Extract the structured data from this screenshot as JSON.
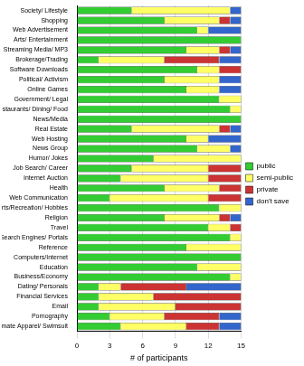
{
  "chart_data": {
    "type": "bar",
    "orientation": "horizontal",
    "stacked": true,
    "grid": true,
    "legend": "right",
    "xlabel": "# of participants",
    "xlim": [
      0,
      15
    ],
    "xticks": [
      0,
      3,
      6,
      9,
      12,
      15
    ],
    "categories": [
      "Society/ Lifestyle",
      "Shopping",
      "Web Advertisement",
      "Arts/ Entertainment",
      "Streaming Media/ MP3",
      "Brokerage/Trading",
      "Software Downloads",
      "Political/ Activism",
      "Online Games",
      "Government/ Legal",
      "Restaurants/ Dining/ Food",
      "News/Media",
      "Real Estate",
      "Web Hosting",
      "News Group",
      "Humor/ Jokes",
      "Job Search/ Career",
      "Internet Auction",
      "Health",
      "Web Communication",
      "Sports/Recreation/ Hobbies",
      "Religion",
      "Travel",
      "Search Engines/ Portals",
      "Reference",
      "Computers/Internet",
      "Education",
      "Business/Economy",
      "Dating/ Personals",
      "Financial Services",
      "Email",
      "Pornography",
      "Intimate Apparel/ Swimsuit"
    ],
    "series": [
      {
        "name": "public",
        "color": "#33cc33",
        "values": [
          5,
          8,
          11,
          15,
          10,
          2,
          11,
          8,
          10,
          13,
          14,
          15,
          5,
          10,
          11,
          7,
          5,
          4,
          8,
          3,
          13,
          8,
          12,
          14,
          10,
          15,
          11,
          14,
          2,
          2,
          2,
          3,
          4
        ]
      },
      {
        "name": "semi-public",
        "color": "#ffff66",
        "values": [
          9,
          5,
          1,
          0,
          3,
          6,
          2,
          5,
          3,
          2,
          1,
          0,
          8,
          2,
          3,
          8,
          7,
          8,
          5,
          9,
          2,
          5,
          2,
          1,
          5,
          0,
          4,
          1,
          2,
          5,
          7,
          5,
          6
        ]
      },
      {
        "name": "private",
        "color": "#cc3333",
        "values": [
          0,
          1,
          0,
          0,
          1,
          5,
          2,
          0,
          0,
          0,
          0,
          0,
          1,
          0,
          0,
          0,
          3,
          3,
          2,
          3,
          0,
          1,
          1,
          0,
          0,
          0,
          0,
          0,
          6,
          8,
          6,
          5,
          3
        ]
      },
      {
        "name": "don't save",
        "color": "#3366cc",
        "values": [
          1,
          1,
          3,
          0,
          1,
          2,
          0,
          2,
          2,
          0,
          0,
          0,
          1,
          3,
          1,
          0,
          0,
          0,
          0,
          0,
          0,
          1,
          0,
          0,
          0,
          0,
          0,
          0,
          5,
          0,
          0,
          2,
          2
        ]
      }
    ]
  }
}
